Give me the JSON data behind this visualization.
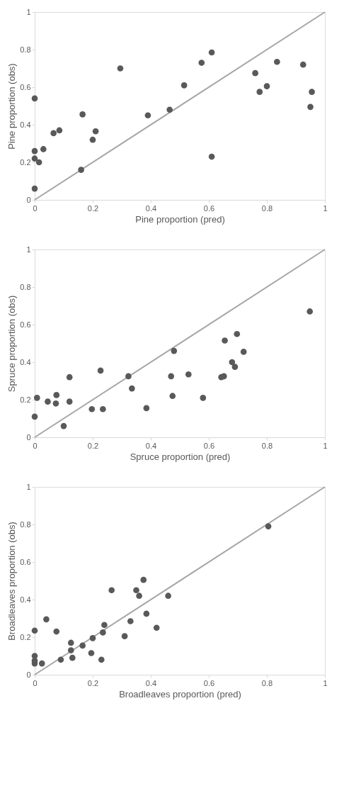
{
  "chart_data": [
    {
      "type": "scatter",
      "xlabel": "Pine proportion (pred)",
      "ylabel": "Pine proportion (obs)",
      "xlim": [
        0,
        1
      ],
      "ylim": [
        0,
        1
      ],
      "xticks": [
        0,
        0.2,
        0.4,
        0.6,
        0.8,
        1
      ],
      "yticks": [
        0,
        0.2,
        0.4,
        0.6,
        0.8,
        1
      ],
      "grid": false,
      "marker": "circle",
      "series": [
        {
          "type": "line",
          "color": "#a6a6a6",
          "line_style": "solid",
          "marker": "none",
          "x": [
            0,
            1
          ],
          "values": [
            0,
            1
          ]
        },
        {
          "color": "#595959",
          "x": [
            0,
            0,
            0,
            0.015,
            0.03,
            0,
            0.065,
            0.085,
            0.16,
            0.165,
            0.2,
            0.21,
            0.295,
            0.39,
            0.465,
            0.515,
            0.575,
            0.61,
            0.61,
            0.76,
            0.775,
            0.8,
            0.835,
            0.925,
            0.95,
            0.955
          ],
          "values": [
            0.54,
            0.26,
            0.22,
            0.2,
            0.27,
            0.06,
            0.355,
            0.37,
            0.16,
            0.455,
            0.32,
            0.365,
            0.7,
            0.45,
            0.48,
            0.61,
            0.73,
            0.785,
            0.23,
            0.675,
            0.575,
            0.605,
            0.735,
            0.72,
            0.495,
            0.575
          ]
        }
      ]
    },
    {
      "type": "scatter",
      "xlabel": "Spruce proportion (pred)",
      "ylabel": "Spruce proportion (obs)",
      "xlim": [
        0,
        1
      ],
      "ylim": [
        0,
        1
      ],
      "xticks": [
        0,
        0.2,
        0.4,
        0.6,
        0.8,
        1
      ],
      "yticks": [
        0,
        0.2,
        0.4,
        0.6,
        0.8,
        1
      ],
      "grid": false,
      "marker": "circle",
      "series": [
        {
          "type": "line",
          "color": "#a6a6a6",
          "line_style": "solid",
          "marker": "none",
          "x": [
            0,
            1
          ],
          "values": [
            0,
            1
          ]
        },
        {
          "color": "#595959",
          "x": [
            0,
            0.008,
            0.045,
            0.075,
            0.073,
            0.1,
            0.12,
            0.12,
            0.197,
            0.235,
            0.227,
            0.323,
            0.335,
            0.385,
            0.47,
            0.48,
            0.475,
            0.53,
            0.58,
            0.643,
            0.652,
            0.655,
            0.68,
            0.69,
            0.697,
            0.72,
            0.948
          ],
          "values": [
            0.11,
            0.21,
            0.19,
            0.225,
            0.18,
            0.06,
            0.32,
            0.19,
            0.15,
            0.15,
            0.355,
            0.325,
            0.26,
            0.155,
            0.325,
            0.46,
            0.22,
            0.335,
            0.21,
            0.32,
            0.325,
            0.515,
            0.4,
            0.375,
            0.55,
            0.455,
            0.67
          ]
        }
      ]
    },
    {
      "type": "scatter",
      "xlabel": "Broadleaves proportion (pred)",
      "ylabel": "Broadleaves proportion (obs)",
      "xlim": [
        0,
        1
      ],
      "ylim": [
        0,
        1
      ],
      "xticks": [
        0,
        0.2,
        0.4,
        0.6,
        0.8,
        1
      ],
      "yticks": [
        0,
        0.2,
        0.4,
        0.6,
        0.8,
        1
      ],
      "grid": false,
      "marker": "circle",
      "series": [
        {
          "type": "line",
          "color": "#a6a6a6",
          "line_style": "solid",
          "marker": "none",
          "x": [
            0,
            1
          ],
          "values": [
            0,
            1
          ]
        },
        {
          "color": "#595959",
          "x": [
            0,
            0,
            0,
            0,
            0.025,
            0.04,
            0.075,
            0.09,
            0.125,
            0.125,
            0.13,
            0.165,
            0.195,
            0.2,
            0.23,
            0.235,
            0.24,
            0.265,
            0.31,
            0.33,
            0.35,
            0.36,
            0.375,
            0.385,
            0.42,
            0.46,
            0.805
          ],
          "values": [
            0.235,
            0.1,
            0.075,
            0.06,
            0.06,
            0.295,
            0.23,
            0.08,
            0.13,
            0.17,
            0.09,
            0.155,
            0.115,
            0.195,
            0.08,
            0.225,
            0.265,
            0.45,
            0.205,
            0.285,
            0.45,
            0.42,
            0.505,
            0.325,
            0.25,
            0.42,
            0.79
          ]
        }
      ]
    }
  ]
}
